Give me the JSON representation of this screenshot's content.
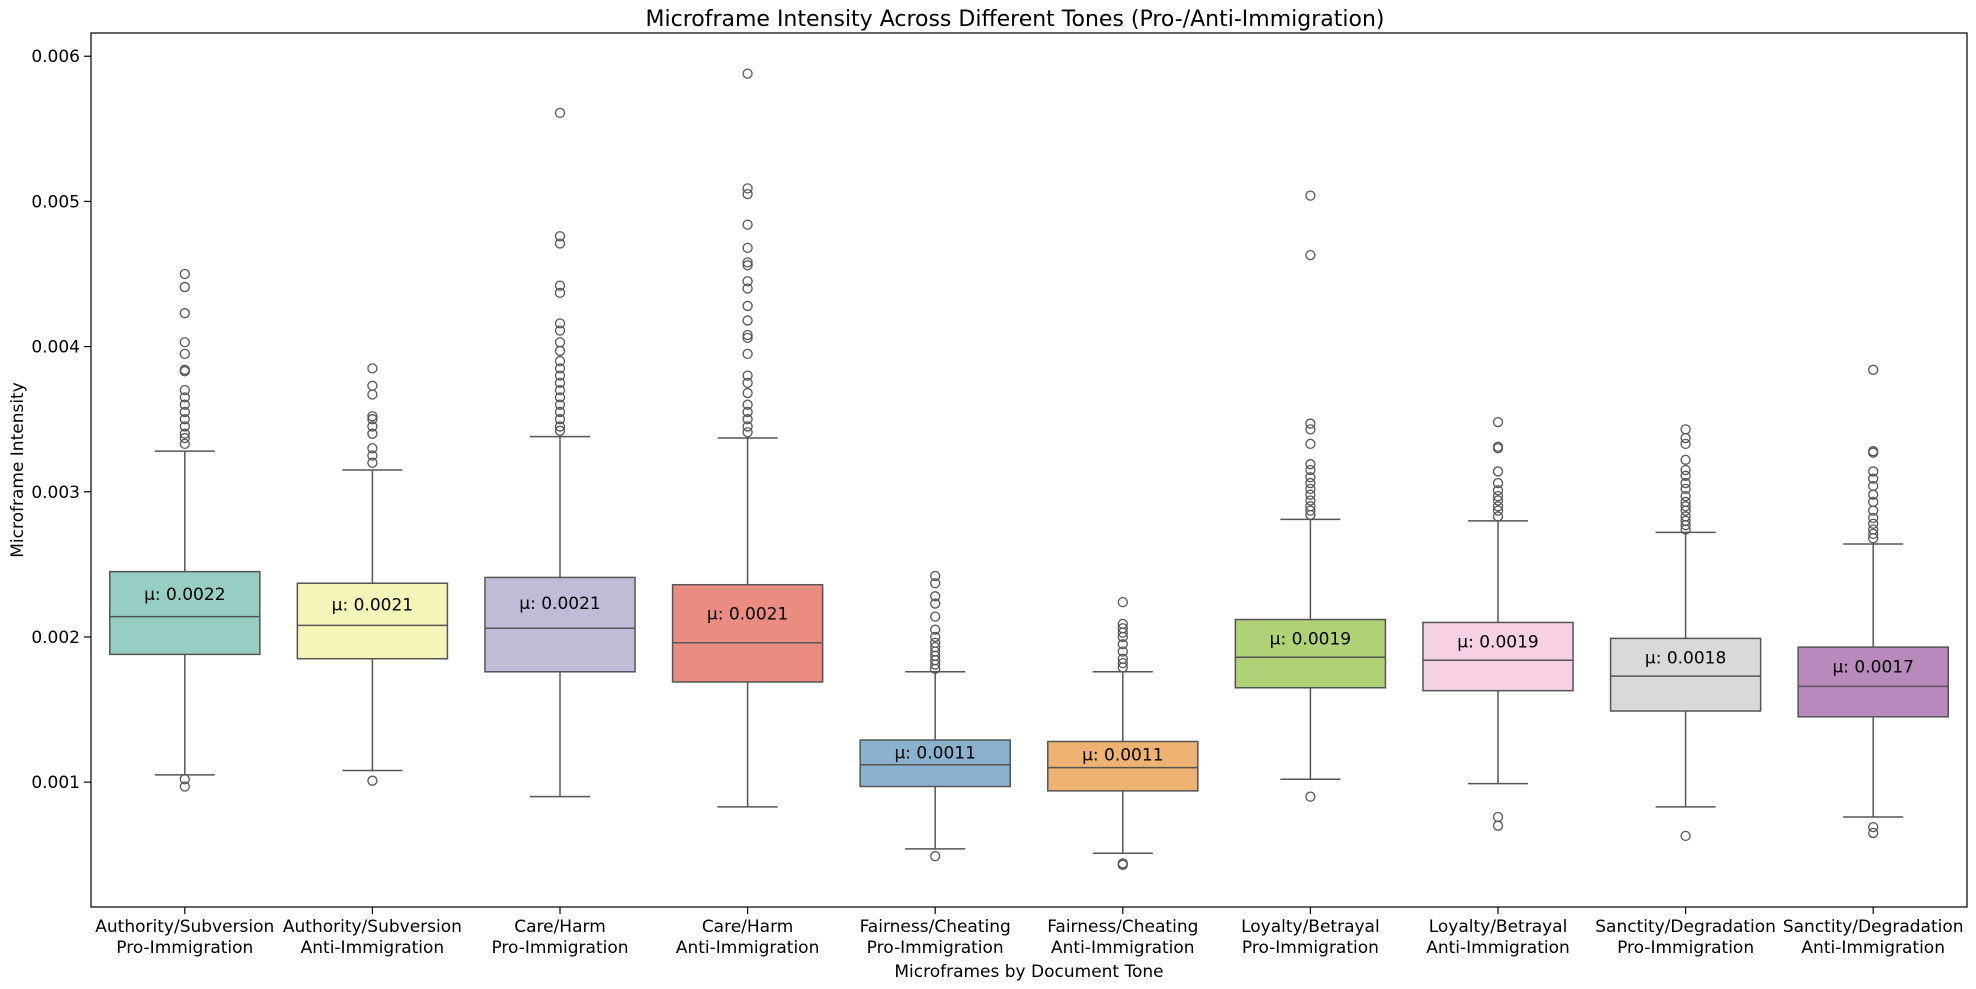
{
  "chart_data": {
    "type": "box",
    "title": "Microframe Intensity Across Different Tones (Pro-/Anti-Immigration)",
    "xlabel": "Microframes by Document Tone",
    "ylabel": "Microframe Intensity",
    "ylim": [
      0.00014,
      0.00616
    ],
    "yticks": [
      "0.001",
      "0.002",
      "0.003",
      "0.004",
      "0.005",
      "0.006"
    ],
    "grid": false,
    "groups": [
      {
        "line1": "Authority/Subversion",
        "line2": "Pro-Immigration",
        "color": "#96cec3",
        "mean_label": "μ: 0.0022",
        "q1": 0.00188,
        "median": 0.00214,
        "q3": 0.00245,
        "whisker_low": 0.00105,
        "whisker_high": 0.00328,
        "outliers": [
          0.00097,
          0.00102,
          0.00333,
          0.00337,
          0.0034,
          0.00345,
          0.0035,
          0.00355,
          0.0036,
          0.00365,
          0.0037,
          0.00383,
          0.00384,
          0.00395,
          0.00403,
          0.00423,
          0.00441,
          0.0045
        ]
      },
      {
        "line1": "Authority/Subversion",
        "line2": "Anti-Immigration",
        "color": "#f6f5b9",
        "mean_label": "μ: 0.0021",
        "q1": 0.00185,
        "median": 0.00208,
        "q3": 0.00237,
        "whisker_low": 0.00108,
        "whisker_high": 0.00315,
        "outliers": [
          0.00101,
          0.0032,
          0.00325,
          0.0033,
          0.0034,
          0.00345,
          0.0035,
          0.00352,
          0.00367,
          0.00373,
          0.00385
        ]
      },
      {
        "line1": "Care/Harm",
        "line2": "Pro-Immigration",
        "color": "#bfbcd8",
        "mean_label": "μ: 0.0021",
        "q1": 0.00176,
        "median": 0.00206,
        "q3": 0.00241,
        "whisker_low": 0.0009,
        "whisker_high": 0.00338,
        "outliers": [
          0.00342,
          0.00345,
          0.0035,
          0.00355,
          0.0036,
          0.00365,
          0.0037,
          0.00375,
          0.0038,
          0.00385,
          0.0039,
          0.00397,
          0.00403,
          0.00411,
          0.00416,
          0.00437,
          0.00442,
          0.00471,
          0.00476,
          0.00561
        ]
      },
      {
        "line1": "Care/Harm",
        "line2": "Anti-Immigration",
        "color": "#eb8c83",
        "mean_label": "μ: 0.0021",
        "q1": 0.00169,
        "median": 0.00196,
        "q3": 0.00236,
        "whisker_low": 0.00083,
        "whisker_high": 0.00337,
        "outliers": [
          0.00341,
          0.00345,
          0.0035,
          0.00355,
          0.0036,
          0.00368,
          0.00375,
          0.0038,
          0.00395,
          0.00406,
          0.00408,
          0.00418,
          0.00428,
          0.0044,
          0.00445,
          0.00456,
          0.00458,
          0.00468,
          0.00484,
          0.00505,
          0.00509,
          0.00588
        ]
      },
      {
        "line1": "Fairness/Cheating",
        "line2": "Pro-Immigration",
        "color": "#8ab1ce",
        "mean_label": "μ: 0.0011",
        "q1": 0.00097,
        "median": 0.00112,
        "q3": 0.00129,
        "whisker_low": 0.00054,
        "whisker_high": 0.00176,
        "outliers": [
          0.00049,
          0.00178,
          0.00181,
          0.00184,
          0.00187,
          0.0019,
          0.00193,
          0.00196,
          0.002,
          0.00205,
          0.00214,
          0.00223,
          0.00228,
          0.00237,
          0.00242
        ]
      },
      {
        "line1": "Fairness/Cheating",
        "line2": "Anti-Immigration",
        "color": "#eeb272",
        "mean_label": "μ: 0.0011",
        "q1": 0.00094,
        "median": 0.0011,
        "q3": 0.00128,
        "whisker_low": 0.00051,
        "whisker_high": 0.00176,
        "outliers": [
          0.00043,
          0.00044,
          0.00179,
          0.00182,
          0.00185,
          0.0019,
          0.00195,
          0.002,
          0.00203,
          0.00206,
          0.00209,
          0.00224
        ]
      },
      {
        "line1": "Loyalty/Betrayal",
        "line2": "Pro-Immigration",
        "color": "#b0d277",
        "mean_label": "μ: 0.0019",
        "q1": 0.00165,
        "median": 0.00186,
        "q3": 0.00212,
        "whisker_low": 0.00102,
        "whisker_high": 0.00281,
        "outliers": [
          0.0009,
          0.00284,
          0.00287,
          0.0029,
          0.00294,
          0.00298,
          0.00302,
          0.00306,
          0.0031,
          0.00315,
          0.00319,
          0.00333,
          0.00343,
          0.00347,
          0.00463,
          0.00504
        ]
      },
      {
        "line1": "Loyalty/Betrayal",
        "line2": "Anti-Immigration",
        "color": "#f6d1e3",
        "mean_label": "μ: 0.0019",
        "q1": 0.00163,
        "median": 0.00184,
        "q3": 0.0021,
        "whisker_low": 0.00099,
        "whisker_high": 0.0028,
        "outliers": [
          0.0007,
          0.00076,
          0.00283,
          0.00287,
          0.0029,
          0.00294,
          0.00297,
          0.00301,
          0.00306,
          0.00314,
          0.0033,
          0.00331,
          0.00348
        ]
      },
      {
        "line1": "Sanctity/Degradation",
        "line2": "Pro-Immigration",
        "color": "#d9d9d9",
        "mean_label": "μ: 0.0018",
        "q1": 0.00149,
        "median": 0.00173,
        "q3": 0.00199,
        "whisker_low": 0.00083,
        "whisker_high": 0.00272,
        "outliers": [
          0.00063,
          0.00274,
          0.00277,
          0.0028,
          0.00283,
          0.00287,
          0.0029,
          0.00293,
          0.00297,
          0.00302,
          0.00306,
          0.00311,
          0.00315,
          0.00322,
          0.00333,
          0.00337,
          0.00343
        ]
      },
      {
        "line1": "Sanctity/Degradation",
        "line2": "Anti-Immigration",
        "color": "#b889bb",
        "mean_label": "μ: 0.0017",
        "q1": 0.00145,
        "median": 0.00166,
        "q3": 0.00193,
        "whisker_low": 0.00076,
        "whisker_high": 0.00264,
        "outliers": [
          0.00065,
          0.00069,
          0.00268,
          0.00271,
          0.00274,
          0.00278,
          0.00282,
          0.00287,
          0.00293,
          0.00298,
          0.00304,
          0.00309,
          0.00314,
          0.00327,
          0.00328,
          0.00384
        ]
      }
    ]
  }
}
